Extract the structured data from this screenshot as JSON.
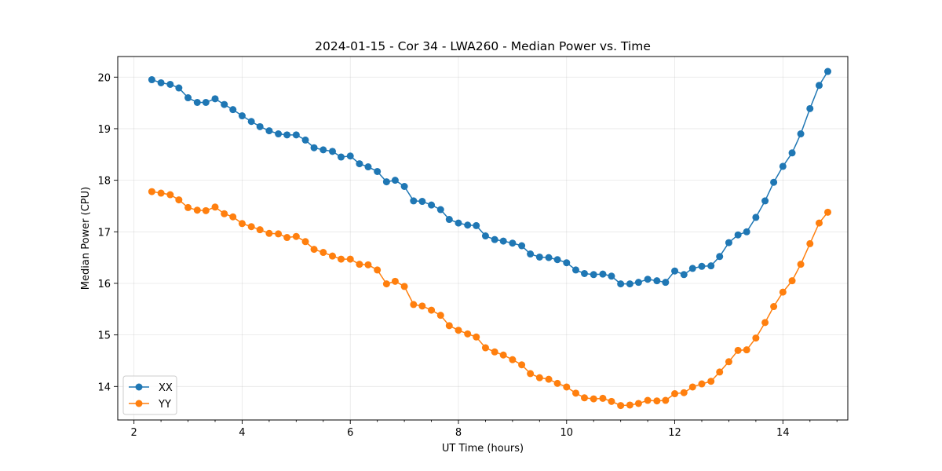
{
  "chart_data": {
    "type": "line",
    "title": "2024-01-15 - Cor 34 - LWA260 - Median Power vs. Time",
    "xlabel": "UT Time (hours)",
    "ylabel": "Median Power (CPU)",
    "xlim": [
      1.7,
      15.2
    ],
    "ylim": [
      13.35,
      20.4
    ],
    "xticks": [
      2,
      4,
      6,
      8,
      10,
      12,
      14
    ],
    "yticks": [
      14,
      15,
      16,
      17,
      18,
      19,
      20
    ],
    "xminor_step": 0.5,
    "grid": true,
    "legend_position": "lower-left",
    "x": [
      2.33,
      2.5,
      2.67,
      2.83,
      3.0,
      3.17,
      3.33,
      3.5,
      3.67,
      3.83,
      4.0,
      4.17,
      4.33,
      4.5,
      4.67,
      4.83,
      5.0,
      5.17,
      5.33,
      5.5,
      5.67,
      5.83,
      6.0,
      6.17,
      6.33,
      6.5,
      6.67,
      6.83,
      7.0,
      7.17,
      7.33,
      7.5,
      7.67,
      7.83,
      8.0,
      8.17,
      8.33,
      8.5,
      8.67,
      8.83,
      9.0,
      9.17,
      9.33,
      9.5,
      9.67,
      9.83,
      10.0,
      10.17,
      10.33,
      10.5,
      10.67,
      10.83,
      11.0,
      11.17,
      11.33,
      11.5,
      11.67,
      11.83,
      12.0,
      12.17,
      12.33,
      12.5,
      12.67,
      12.83,
      13.0,
      13.17,
      13.33,
      13.5,
      13.67,
      13.83,
      14.0,
      14.17,
      14.33,
      14.5,
      14.67,
      14.83
    ],
    "series": [
      {
        "name": "XX",
        "color": "#1f77b4",
        "values": [
          19.95,
          19.89,
          19.86,
          19.79,
          19.6,
          19.51,
          19.51,
          19.58,
          19.47,
          19.37,
          19.25,
          19.14,
          19.04,
          18.96,
          18.9,
          18.88,
          18.88,
          18.78,
          18.63,
          18.59,
          18.56,
          18.45,
          18.47,
          18.32,
          18.26,
          18.17,
          17.97,
          18.0,
          17.88,
          17.6,
          17.59,
          17.52,
          17.43,
          17.24,
          17.17,
          17.13,
          17.12,
          16.92,
          16.85,
          16.82,
          16.78,
          16.73,
          16.57,
          16.51,
          16.5,
          16.46,
          16.4,
          16.26,
          16.19,
          16.17,
          16.18,
          16.14,
          15.99,
          15.99,
          16.02,
          16.08,
          16.05,
          16.02,
          16.24,
          16.17,
          16.29,
          16.33,
          16.34,
          16.52,
          16.79,
          16.94,
          17.0,
          17.28,
          17.6,
          17.96,
          18.27,
          18.53,
          18.9,
          19.39,
          19.84,
          20.11
        ]
      },
      {
        "name": "YY",
        "color": "#ff7f0e",
        "values": [
          17.78,
          17.75,
          17.72,
          17.62,
          17.47,
          17.42,
          17.41,
          17.48,
          17.35,
          17.29,
          17.16,
          17.1,
          17.04,
          16.97,
          16.96,
          16.89,
          16.91,
          16.81,
          16.66,
          16.6,
          16.53,
          16.47,
          16.47,
          16.37,
          16.36,
          16.26,
          15.99,
          16.04,
          15.94,
          15.59,
          15.56,
          15.48,
          15.38,
          15.18,
          15.09,
          15.02,
          14.96,
          14.75,
          14.67,
          14.61,
          14.52,
          14.42,
          14.25,
          14.17,
          14.14,
          14.06,
          13.99,
          13.87,
          13.78,
          13.76,
          13.77,
          13.71,
          13.63,
          13.64,
          13.67,
          13.73,
          13.72,
          13.73,
          13.86,
          13.88,
          13.99,
          14.05,
          14.1,
          14.28,
          14.48,
          14.7,
          14.71,
          14.94,
          15.24,
          15.55,
          15.83,
          16.05,
          16.37,
          16.77,
          17.17,
          17.38
        ]
      }
    ]
  }
}
